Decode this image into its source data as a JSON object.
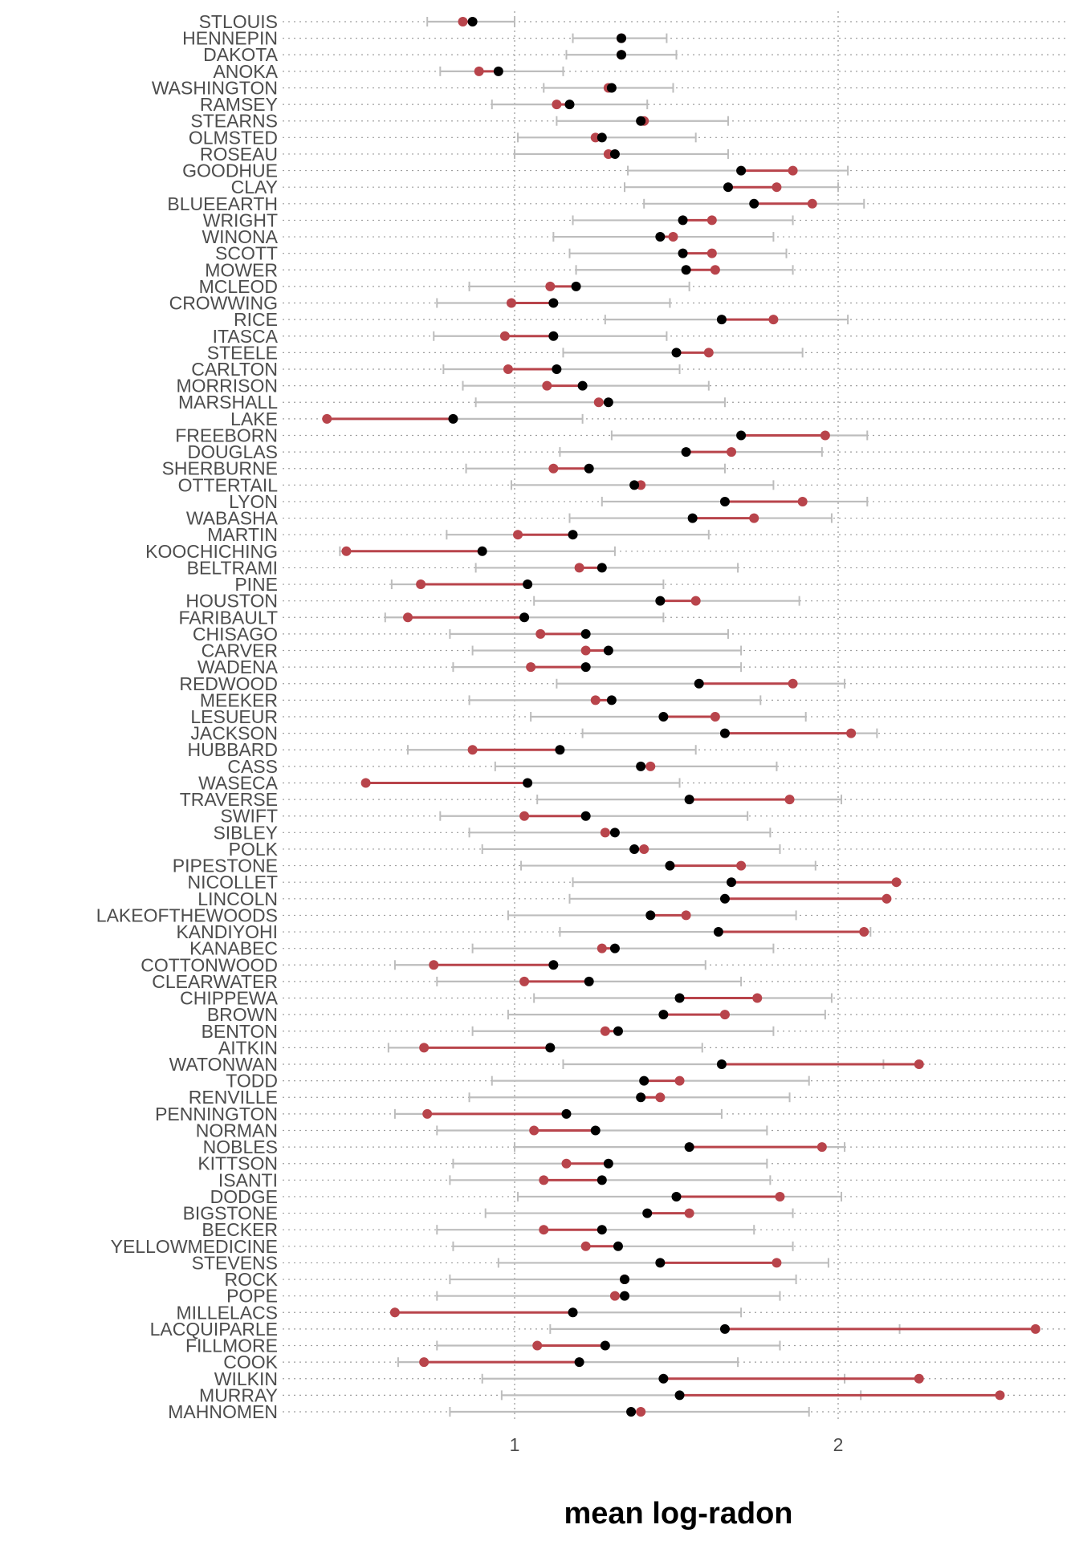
{
  "chart_data": {
    "type": "dot-interval",
    "title": "",
    "xlabel": "mean log-radon",
    "ylabel": "",
    "xlim": [
      0.4,
      2.7
    ],
    "x_ticks": [
      1,
      2
    ],
    "x_tick_labels": [
      "1",
      "2"
    ],
    "grid": {
      "vertical_major": true,
      "horizontal": true,
      "style": "dotted"
    },
    "colors": {
      "estimate": "#000000",
      "observed": "#b8444b",
      "interval": "#bdbdbd",
      "connector": "#b8444b",
      "grid": "#9e9e9e"
    },
    "series_encoding": [
      "estimate (black point)",
      "observed (red point)",
      "interval (grey bar)"
    ],
    "rows": [
      {
        "county": "STLOUIS",
        "estimate": 0.87,
        "observed": 0.84,
        "lo": 0.73,
        "hi": 1.0
      },
      {
        "county": "HENNEPIN",
        "estimate": 1.33,
        "observed": 1.33,
        "lo": 1.18,
        "hi": 1.47
      },
      {
        "county": "DAKOTA",
        "estimate": 1.33,
        "observed": 1.33,
        "lo": 1.16,
        "hi": 1.5
      },
      {
        "county": "ANOKA",
        "estimate": 0.95,
        "observed": 0.89,
        "lo": 0.77,
        "hi": 1.15
      },
      {
        "county": "WASHINGTON",
        "estimate": 1.3,
        "observed": 1.29,
        "lo": 1.09,
        "hi": 1.49
      },
      {
        "county": "RAMSEY",
        "estimate": 1.17,
        "observed": 1.13,
        "lo": 0.93,
        "hi": 1.41
      },
      {
        "county": "STEARNS",
        "estimate": 1.39,
        "observed": 1.4,
        "lo": 1.13,
        "hi": 1.66
      },
      {
        "county": "OLMSTED",
        "estimate": 1.27,
        "observed": 1.25,
        "lo": 1.01,
        "hi": 1.56
      },
      {
        "county": "ROSEAU",
        "estimate": 1.31,
        "observed": 1.29,
        "lo": 1.0,
        "hi": 1.66
      },
      {
        "county": "GOODHUE",
        "estimate": 1.7,
        "observed": 1.86,
        "lo": 1.35,
        "hi": 2.03
      },
      {
        "county": "CLAY",
        "estimate": 1.66,
        "observed": 1.81,
        "lo": 1.34,
        "hi": 2.0
      },
      {
        "county": "BLUEEARTH",
        "estimate": 1.74,
        "observed": 1.92,
        "lo": 1.4,
        "hi": 2.08
      },
      {
        "county": "WRIGHT",
        "estimate": 1.52,
        "observed": 1.61,
        "lo": 1.18,
        "hi": 1.86
      },
      {
        "county": "WINONA",
        "estimate": 1.45,
        "observed": 1.49,
        "lo": 1.12,
        "hi": 1.8
      },
      {
        "county": "SCOTT",
        "estimate": 1.52,
        "observed": 1.61,
        "lo": 1.17,
        "hi": 1.84
      },
      {
        "county": "MOWER",
        "estimate": 1.53,
        "observed": 1.62,
        "lo": 1.19,
        "hi": 1.86
      },
      {
        "county": "MCLEOD",
        "estimate": 1.19,
        "observed": 1.11,
        "lo": 0.86,
        "hi": 1.54
      },
      {
        "county": "CROWWING",
        "estimate": 1.12,
        "observed": 0.99,
        "lo": 0.76,
        "hi": 1.48
      },
      {
        "county": "RICE",
        "estimate": 1.64,
        "observed": 1.8,
        "lo": 1.28,
        "hi": 2.03
      },
      {
        "county": "ITASCA",
        "estimate": 1.12,
        "observed": 0.97,
        "lo": 0.75,
        "hi": 1.47
      },
      {
        "county": "STEELE",
        "estimate": 1.5,
        "observed": 1.6,
        "lo": 1.15,
        "hi": 1.89
      },
      {
        "county": "CARLTON",
        "estimate": 1.13,
        "observed": 0.98,
        "lo": 0.78,
        "hi": 1.51
      },
      {
        "county": "MORRISON",
        "estimate": 1.21,
        "observed": 1.1,
        "lo": 0.84,
        "hi": 1.6
      },
      {
        "county": "MARSHALL",
        "estimate": 1.29,
        "observed": 1.26,
        "lo": 0.88,
        "hi": 1.65
      },
      {
        "county": "LAKE",
        "estimate": 0.81,
        "observed": 0.42,
        "lo": 0.42,
        "hi": 1.21
      },
      {
        "county": "FREEBORN",
        "estimate": 1.7,
        "observed": 1.96,
        "lo": 1.3,
        "hi": 2.09
      },
      {
        "county": "DOUGLAS",
        "estimate": 1.53,
        "observed": 1.67,
        "lo": 1.14,
        "hi": 1.95
      },
      {
        "county": "SHERBURNE",
        "estimate": 1.23,
        "observed": 1.12,
        "lo": 0.85,
        "hi": 1.65
      },
      {
        "county": "OTTERTAIL",
        "estimate": 1.37,
        "observed": 1.39,
        "lo": 0.99,
        "hi": 1.8
      },
      {
        "county": "LYON",
        "estimate": 1.65,
        "observed": 1.89,
        "lo": 1.27,
        "hi": 2.09
      },
      {
        "county": "WABASHA",
        "estimate": 1.55,
        "observed": 1.74,
        "lo": 1.17,
        "hi": 1.98
      },
      {
        "county": "MARTIN",
        "estimate": 1.18,
        "observed": 1.01,
        "lo": 0.79,
        "hi": 1.6
      },
      {
        "county": "KOOCHICHING",
        "estimate": 0.9,
        "observed": 0.48,
        "lo": 0.46,
        "hi": 1.31
      },
      {
        "county": "BELTRAMI",
        "estimate": 1.27,
        "observed": 1.2,
        "lo": 0.88,
        "hi": 1.69
      },
      {
        "county": "PINE",
        "estimate": 1.04,
        "observed": 0.71,
        "lo": 0.62,
        "hi": 1.46
      },
      {
        "county": "HOUSTON",
        "estimate": 1.45,
        "observed": 1.56,
        "lo": 1.06,
        "hi": 1.88
      },
      {
        "county": "FARIBAULT",
        "estimate": 1.03,
        "observed": 0.67,
        "lo": 0.6,
        "hi": 1.46
      },
      {
        "county": "CHISAGO",
        "estimate": 1.22,
        "observed": 1.08,
        "lo": 0.8,
        "hi": 1.66
      },
      {
        "county": "CARVER",
        "estimate": 1.29,
        "observed": 1.22,
        "lo": 0.87,
        "hi": 1.7
      },
      {
        "county": "WADENA",
        "estimate": 1.22,
        "observed": 1.05,
        "lo": 0.81,
        "hi": 1.7
      },
      {
        "county": "REDWOOD",
        "estimate": 1.57,
        "observed": 1.86,
        "lo": 1.13,
        "hi": 2.02
      },
      {
        "county": "MEEKER",
        "estimate": 1.3,
        "observed": 1.25,
        "lo": 0.86,
        "hi": 1.76
      },
      {
        "county": "LESUEUR",
        "estimate": 1.46,
        "observed": 1.62,
        "lo": 1.05,
        "hi": 1.9
      },
      {
        "county": "JACKSON",
        "estimate": 1.65,
        "observed": 2.04,
        "lo": 1.21,
        "hi": 2.12
      },
      {
        "county": "HUBBARD",
        "estimate": 1.14,
        "observed": 0.87,
        "lo": 0.67,
        "hi": 1.56
      },
      {
        "county": "CASS",
        "estimate": 1.39,
        "observed": 1.42,
        "lo": 0.94,
        "hi": 1.81
      },
      {
        "county": "WASECA",
        "estimate": 1.04,
        "observed": 0.54,
        "lo": 0.54,
        "hi": 1.51
      },
      {
        "county": "TRAVERSE",
        "estimate": 1.54,
        "observed": 1.85,
        "lo": 1.07,
        "hi": 2.01
      },
      {
        "county": "SWIFT",
        "estimate": 1.22,
        "observed": 1.03,
        "lo": 0.77,
        "hi": 1.72
      },
      {
        "county": "SIBLEY",
        "estimate": 1.31,
        "observed": 1.28,
        "lo": 0.86,
        "hi": 1.79
      },
      {
        "county": "POLK",
        "estimate": 1.37,
        "observed": 1.4,
        "lo": 0.9,
        "hi": 1.82
      },
      {
        "county": "PIPESTONE",
        "estimate": 1.48,
        "observed": 1.7,
        "lo": 1.02,
        "hi": 1.93
      },
      {
        "county": "NICOLLET",
        "estimate": 1.67,
        "observed": 2.18,
        "lo": 1.18,
        "hi": 2.18
      },
      {
        "county": "LINCOLN",
        "estimate": 1.65,
        "observed": 2.15,
        "lo": 1.17,
        "hi": 2.15
      },
      {
        "county": "LAKEOFTHEWOODS",
        "estimate": 1.42,
        "observed": 1.53,
        "lo": 0.98,
        "hi": 1.87
      },
      {
        "county": "KANDIYOHI",
        "estimate": 1.63,
        "observed": 2.08,
        "lo": 1.14,
        "hi": 2.1
      },
      {
        "county": "KANABEC",
        "estimate": 1.31,
        "observed": 1.27,
        "lo": 0.87,
        "hi": 1.8
      },
      {
        "county": "COTTONWOOD",
        "estimate": 1.12,
        "observed": 0.75,
        "lo": 0.63,
        "hi": 1.59
      },
      {
        "county": "CLEARWATER",
        "estimate": 1.23,
        "observed": 1.03,
        "lo": 0.76,
        "hi": 1.7
      },
      {
        "county": "CHIPPEWA",
        "estimate": 1.51,
        "observed": 1.75,
        "lo": 1.06,
        "hi": 1.98
      },
      {
        "county": "BROWN",
        "estimate": 1.46,
        "observed": 1.65,
        "lo": 0.98,
        "hi": 1.96
      },
      {
        "county": "BENTON",
        "estimate": 1.32,
        "observed": 1.28,
        "lo": 0.87,
        "hi": 1.8
      },
      {
        "county": "AITKIN",
        "estimate": 1.11,
        "observed": 0.72,
        "lo": 0.61,
        "hi": 1.58
      },
      {
        "county": "WATONWAN",
        "estimate": 1.64,
        "observed": 2.25,
        "lo": 1.15,
        "hi": 2.14
      },
      {
        "county": "TODD",
        "estimate": 1.4,
        "observed": 1.51,
        "lo": 0.93,
        "hi": 1.91
      },
      {
        "county": "RENVILLE",
        "estimate": 1.39,
        "observed": 1.45,
        "lo": 0.86,
        "hi": 1.85
      },
      {
        "county": "PENNINGTON",
        "estimate": 1.16,
        "observed": 0.73,
        "lo": 0.63,
        "hi": 1.64
      },
      {
        "county": "NORMAN",
        "estimate": 1.25,
        "observed": 1.06,
        "lo": 0.76,
        "hi": 1.78
      },
      {
        "county": "NOBLES",
        "estimate": 1.54,
        "observed": 1.95,
        "lo": 1.0,
        "hi": 2.02
      },
      {
        "county": "KITTSON",
        "estimate": 1.29,
        "observed": 1.16,
        "lo": 0.81,
        "hi": 1.78
      },
      {
        "county": "ISANTI",
        "estimate": 1.27,
        "observed": 1.09,
        "lo": 0.8,
        "hi": 1.79
      },
      {
        "county": "DODGE",
        "estimate": 1.5,
        "observed": 1.82,
        "lo": 1.01,
        "hi": 2.01
      },
      {
        "county": "BIGSTONE",
        "estimate": 1.41,
        "observed": 1.54,
        "lo": 0.91,
        "hi": 1.86
      },
      {
        "county": "BECKER",
        "estimate": 1.27,
        "observed": 1.09,
        "lo": 0.76,
        "hi": 1.74
      },
      {
        "county": "YELLOWMEDICINE",
        "estimate": 1.32,
        "observed": 1.22,
        "lo": 0.81,
        "hi": 1.86
      },
      {
        "county": "STEVENS",
        "estimate": 1.45,
        "observed": 1.81,
        "lo": 0.95,
        "hi": 1.97
      },
      {
        "county": "ROCK",
        "estimate": 1.34,
        "observed": 1.34,
        "lo": 0.8,
        "hi": 1.87
      },
      {
        "county": "POPE",
        "estimate": 1.34,
        "observed": 1.31,
        "lo": 0.76,
        "hi": 1.82
      },
      {
        "county": "MILLELACS",
        "estimate": 1.18,
        "observed": 0.63,
        "lo": 0.63,
        "hi": 1.7
      },
      {
        "county": "LACQUIPARLE",
        "estimate": 1.65,
        "observed": 2.61,
        "lo": 1.11,
        "hi": 2.19
      },
      {
        "county": "FILLMORE",
        "estimate": 1.28,
        "observed": 1.07,
        "lo": 0.76,
        "hi": 1.82
      },
      {
        "county": "COOK",
        "estimate": 1.2,
        "observed": 0.72,
        "lo": 0.64,
        "hi": 1.69
      },
      {
        "county": "WILKIN",
        "estimate": 1.46,
        "observed": 2.25,
        "lo": 0.9,
        "hi": 2.02
      },
      {
        "county": "MURRAY",
        "estimate": 1.51,
        "observed": 2.5,
        "lo": 0.96,
        "hi": 2.07
      },
      {
        "county": "MAHNOMEN",
        "estimate": 1.36,
        "observed": 1.39,
        "lo": 0.8,
        "hi": 1.91
      }
    ]
  }
}
